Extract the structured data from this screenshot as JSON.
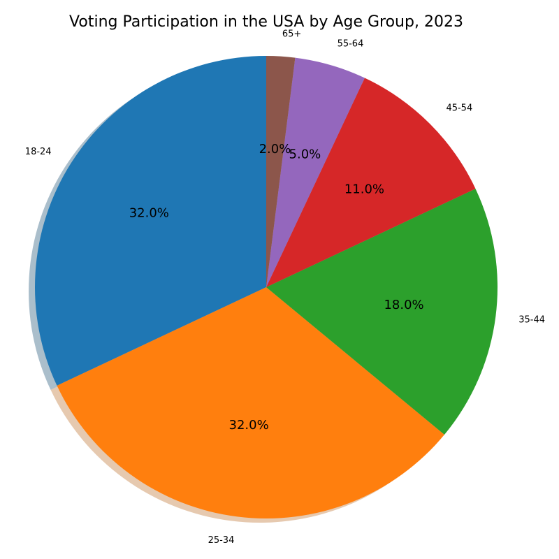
{
  "chart_data": {
    "type": "pie",
    "title": "Voting Participation in the USA by Age Group, 2023",
    "categories": [
      "18-24",
      "25-34",
      "35-44",
      "45-54",
      "55-64",
      "65+"
    ],
    "values": [
      32.0,
      32.0,
      18.0,
      11.0,
      5.0,
      2.0
    ],
    "value_labels": [
      "32.0%",
      "32.0%",
      "18.0%",
      "11.0%",
      "5.0%",
      "2.0%"
    ],
    "colors": [
      "#1f77b4",
      "#ff7f0e",
      "#2ca02c",
      "#d62728",
      "#9467bd",
      "#8c564b"
    ],
    "start_angle_deg": 90,
    "direction": "counterclockwise",
    "shadow": true,
    "legend": "none"
  }
}
